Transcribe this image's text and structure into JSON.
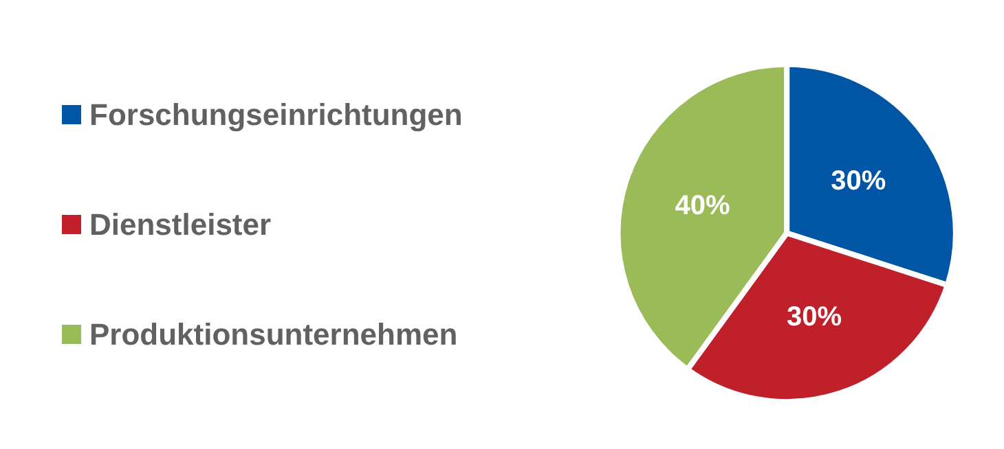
{
  "chart_data": {
    "type": "pie",
    "categories": [
      "Forschungseinrichtungen",
      "Dienstleister",
      "Produktionsunternehmen"
    ],
    "values": [
      30,
      30,
      40
    ],
    "colors": [
      "#0055a4",
      "#c0202a",
      "#9bbb59"
    ],
    "value_labels": [
      "30%",
      "30%",
      "40%"
    ],
    "legend": "left"
  }
}
